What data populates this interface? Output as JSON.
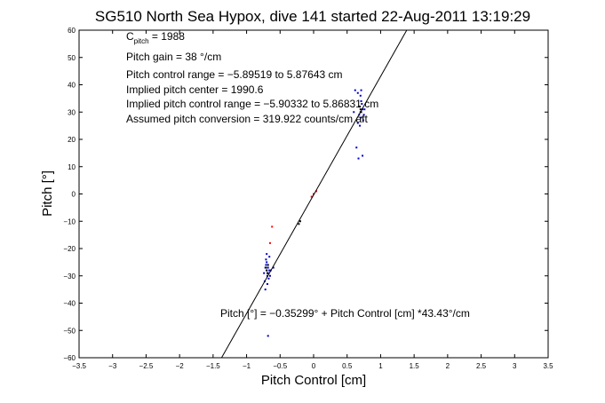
{
  "chart_data": {
    "type": "scatter",
    "title": "SG510 North Sea Hypox, dive 141 started 22-Aug-2011 13:19:29",
    "xlabel": "Pitch Control [cm]",
    "ylabel": "Pitch [°]",
    "xlim": [
      -3.5,
      3.5
    ],
    "ylim": [
      -60,
      60
    ],
    "x_ticks": [
      -3.5,
      -3,
      -2.5,
      -2,
      -1.5,
      -1,
      -0.5,
      0,
      0.5,
      1,
      1.5,
      2,
      2.5,
      3,
      3.5
    ],
    "x_tick_labels": [
      "−3.5",
      "−3",
      "−2.5",
      "−2",
      "−1.5",
      "−1",
      "−0.5",
      "0",
      "0.5",
      "1",
      "1.5",
      "2",
      "2.5",
      "3",
      "3.5"
    ],
    "y_ticks": [
      -60,
      -50,
      -40,
      -30,
      -20,
      -10,
      0,
      10,
      20,
      30,
      40,
      50,
      60
    ],
    "y_tick_labels": [
      "−60",
      "−50",
      "−40",
      "−30",
      "−20",
      "−10",
      "0",
      "10",
      "20",
      "30",
      "40",
      "50",
      "60"
    ],
    "grid": false,
    "annotations": {
      "c_pitch_prefix": "C",
      "c_pitch_sub": "pitch",
      "c_pitch_value": " = 1988",
      "lines": [
        "Pitch gain = 38 °/cm",
        "Pitch control range = −5.89519 to 5.87643 cm",
        "Implied pitch center = 1990.6",
        "Implied pitch control range = −5.90332 to 5.86831 cm",
        "Assumed pitch conversion = 319.922 counts/cm aft"
      ],
      "fit_equation": "Pitch [°] = −0.35299° + Pitch Control [cm] *43.43°/cm"
    },
    "fit_line": {
      "intercept": -0.35299,
      "slope": 43.43,
      "color": "#000000"
    },
    "series": [
      {
        "color": "#0000cc",
        "marker": "dot",
        "points": [
          [
            0.62,
            38
          ],
          [
            0.66,
            37
          ],
          [
            0.7,
            36
          ],
          [
            0.72,
            33
          ],
          [
            0.68,
            32
          ],
          [
            0.73,
            31
          ],
          [
            0.7,
            30
          ],
          [
            0.68,
            29
          ],
          [
            0.71,
            28
          ],
          [
            0.74,
            27
          ],
          [
            0.66,
            26
          ],
          [
            0.69,
            25
          ],
          [
            0.71,
            34
          ],
          [
            0.75,
            29
          ],
          [
            0.6,
            30
          ],
          [
            0.64,
            17
          ],
          [
            0.67,
            13
          ],
          [
            0.73,
            14
          ],
          [
            0.71,
            38
          ],
          [
            0.76,
            31
          ],
          [
            -0.72,
            -27
          ],
          [
            -0.7,
            -28
          ],
          [
            -0.68,
            -29
          ],
          [
            -0.69,
            -30
          ],
          [
            -0.71,
            -26
          ],
          [
            -0.67,
            -31
          ],
          [
            -0.73,
            -32
          ],
          [
            -0.66,
            -28
          ],
          [
            -0.7,
            -25
          ],
          [
            -0.74,
            -29
          ],
          [
            -0.68,
            -27
          ],
          [
            -0.65,
            -30
          ],
          [
            -0.69,
            -33
          ],
          [
            -0.72,
            -35
          ],
          [
            -0.66,
            -23
          ],
          [
            -0.7,
            -22
          ],
          [
            -0.68,
            -52
          ],
          [
            -0.64,
            -28
          ],
          [
            -0.71,
            -24
          ],
          [
            -0.6,
            -27
          ]
        ]
      },
      {
        "color": "#000000",
        "marker": "dot",
        "points": [
          [
            -0.7,
            -28
          ],
          [
            -0.69,
            -29
          ],
          [
            -0.71,
            -27
          ],
          [
            -0.2,
            -10
          ],
          [
            -0.22,
            -11
          ],
          [
            0.7,
            31
          ],
          [
            0.71,
            30
          ],
          [
            0.69,
            32
          ],
          [
            -0.68,
            -26
          ]
        ]
      },
      {
        "color": "#ff0000",
        "marker": "dot",
        "points": [
          [
            0.0,
            0.0
          ],
          [
            -0.65,
            -18
          ],
          [
            -0.62,
            -12
          ],
          [
            0.04,
            1
          ],
          [
            -0.03,
            -1
          ]
        ]
      }
    ]
  }
}
